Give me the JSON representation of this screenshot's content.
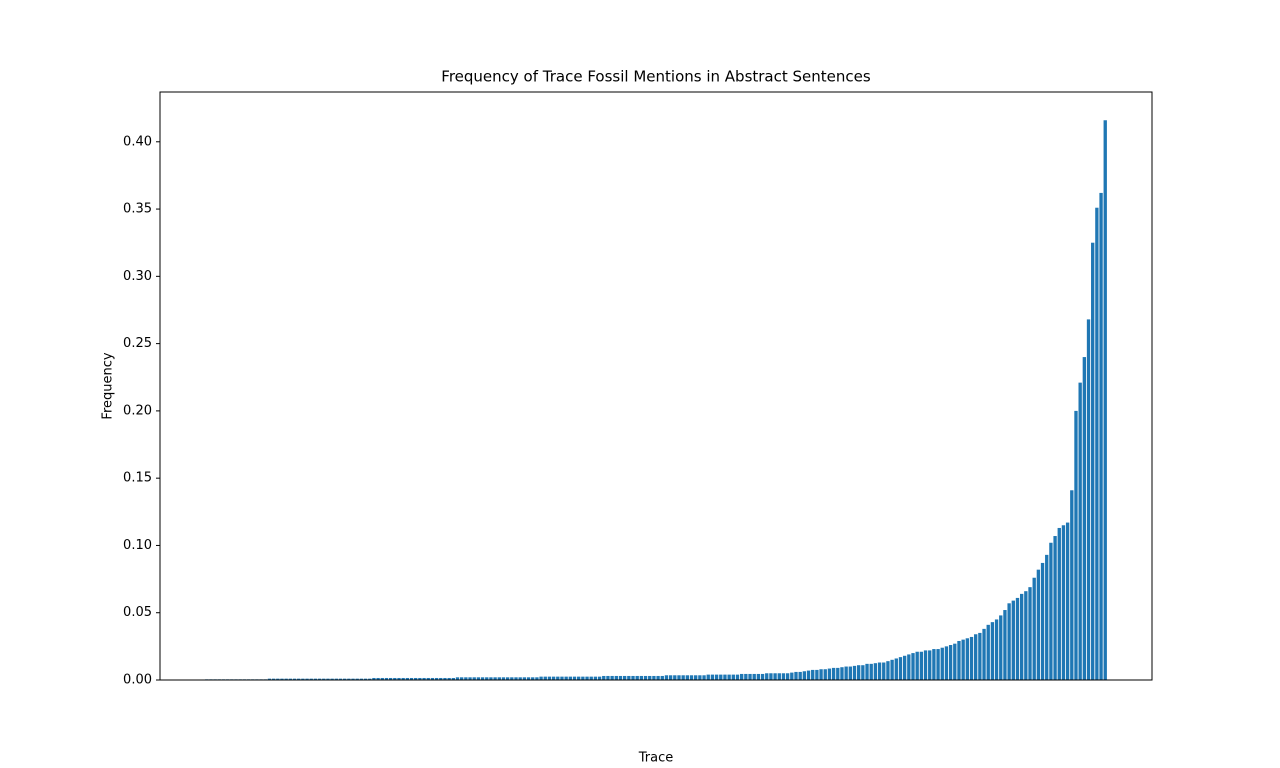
{
  "chart_data": {
    "type": "bar",
    "title": "Frequency of Trace Fossil Mentions in Abstract Sentences",
    "x_label": "Trace",
    "y_label": "Frequency",
    "color": "#1f77b4",
    "ylim": [
      0,
      0.437
    ],
    "yticks": [
      {
        "value": 0,
        "label": "0.00"
      },
      {
        "value": 0.05,
        "label": "0.05"
      },
      {
        "value": 0.1,
        "label": "0.10"
      },
      {
        "value": 0.15,
        "label": "0.15"
      },
      {
        "value": 0.2,
        "label": "0.20"
      },
      {
        "value": 0.25,
        "label": "0.25"
      },
      {
        "value": 0.3,
        "label": "0.30"
      },
      {
        "value": 0.35,
        "label": "0.35"
      },
      {
        "value": 0.4,
        "label": "0.40"
      }
    ],
    "categories": [
      null,
      null,
      null,
      null,
      null,
      null,
      null,
      null,
      null,
      null,
      null,
      null,
      null,
      null,
      null,
      null,
      null,
      null,
      null,
      null,
      null,
      null,
      null,
      null,
      null,
      null,
      null,
      null,
      null,
      null,
      null,
      null,
      null,
      null,
      null,
      null,
      null,
      null,
      null,
      null,
      null,
      null,
      null,
      null,
      null,
      null,
      null,
      null,
      null,
      null,
      null,
      null,
      null,
      null,
      null,
      null,
      null,
      null,
      null,
      null,
      null,
      null,
      null,
      null,
      null,
      null,
      null,
      null,
      null,
      null,
      null,
      null,
      null,
      null,
      null,
      null,
      null,
      null,
      null,
      null,
      null,
      null,
      null,
      null,
      null,
      null,
      null,
      null,
      null,
      null,
      null,
      null,
      null,
      null,
      null,
      null,
      null,
      null,
      null,
      null,
      null,
      null,
      null,
      null,
      null,
      null,
      null,
      null,
      null,
      null,
      null,
      null,
      null,
      null,
      null,
      null,
      null,
      null,
      null,
      null,
      null,
      null,
      null,
      null,
      null,
      null,
      null,
      null,
      null,
      null,
      null,
      null,
      null,
      null,
      null,
      null,
      null,
      null,
      null,
      null,
      null,
      null,
      null,
      null,
      null,
      null,
      null,
      null,
      null,
      null,
      null,
      null,
      null,
      null,
      null,
      null,
      null,
      null,
      null,
      null,
      null,
      null,
      null,
      null,
      null,
      null,
      null,
      null,
      null,
      null,
      null,
      null,
      null,
      null,
      null,
      null,
      null,
      null,
      null,
      null,
      null,
      null,
      null,
      null,
      null,
      null,
      null,
      null,
      null,
      null,
      null,
      null,
      null,
      null,
      null,
      null,
      null,
      null,
      null,
      null,
      null,
      null,
      null,
      null,
      null,
      null,
      null,
      null,
      null,
      null,
      null,
      null,
      null,
      null,
      null,
      null
    ],
    "values": [
      0.0005,
      0.0005,
      0.0005,
      0.0005,
      0.0005,
      0.0005,
      0.0005,
      0.0005,
      0.0005,
      0.0005,
      0.0005,
      0.0005,
      0.0005,
      0.0005,
      0.0005,
      0.001,
      0.001,
      0.001,
      0.001,
      0.001,
      0.001,
      0.001,
      0.001,
      0.001,
      0.001,
      0.001,
      0.001,
      0.001,
      0.001,
      0.001,
      0.001,
      0.001,
      0.001,
      0.001,
      0.001,
      0.001,
      0.001,
      0.001,
      0.001,
      0.001,
      0.0015,
      0.0015,
      0.0015,
      0.0015,
      0.0015,
      0.0015,
      0.0015,
      0.0015,
      0.0015,
      0.0015,
      0.0015,
      0.0015,
      0.0015,
      0.0015,
      0.0015,
      0.0015,
      0.0015,
      0.0015,
      0.0015,
      0.0015,
      0.002,
      0.002,
      0.002,
      0.002,
      0.002,
      0.002,
      0.002,
      0.002,
      0.002,
      0.002,
      0.002,
      0.002,
      0.002,
      0.002,
      0.002,
      0.002,
      0.002,
      0.002,
      0.002,
      0.002,
      0.0025,
      0.0025,
      0.0025,
      0.0025,
      0.0025,
      0.0025,
      0.0025,
      0.0025,
      0.0025,
      0.0025,
      0.0025,
      0.0025,
      0.0025,
      0.0025,
      0.0025,
      0.003,
      0.003,
      0.003,
      0.003,
      0.003,
      0.003,
      0.003,
      0.003,
      0.003,
      0.003,
      0.003,
      0.003,
      0.003,
      0.003,
      0.003,
      0.0035,
      0.0035,
      0.0035,
      0.0035,
      0.0035,
      0.0035,
      0.0035,
      0.0035,
      0.0035,
      0.0035,
      0.004,
      0.004,
      0.004,
      0.004,
      0.004,
      0.004,
      0.004,
      0.004,
      0.0045,
      0.0045,
      0.0045,
      0.0045,
      0.0045,
      0.0045,
      0.005,
      0.005,
      0.005,
      0.005,
      0.005,
      0.005,
      0.0055,
      0.006,
      0.006,
      0.0065,
      0.007,
      0.0075,
      0.0075,
      0.008,
      0.008,
      0.0085,
      0.009,
      0.009,
      0.0095,
      0.01,
      0.01,
      0.0105,
      0.011,
      0.011,
      0.012,
      0.012,
      0.0125,
      0.013,
      0.013,
      0.014,
      0.015,
      0.016,
      0.017,
      0.018,
      0.019,
      0.02,
      0.021,
      0.021,
      0.022,
      0.022,
      0.023,
      0.023,
      0.024,
      0.025,
      0.026,
      0.027,
      0.029,
      0.03,
      0.031,
      0.032,
      0.034,
      0.035,
      0.038,
      0.041,
      0.043,
      0.045,
      0.048,
      0.052,
      0.057,
      0.059,
      0.061,
      0.064,
      0.066,
      0.069,
      0.076,
      0.082,
      0.087,
      0.093,
      0.102,
      0.107,
      0.113,
      0.115,
      0.117,
      0.141,
      0.2,
      0.221,
      0.24,
      0.268,
      0.325,
      0.351,
      0.362,
      0.416
    ]
  }
}
